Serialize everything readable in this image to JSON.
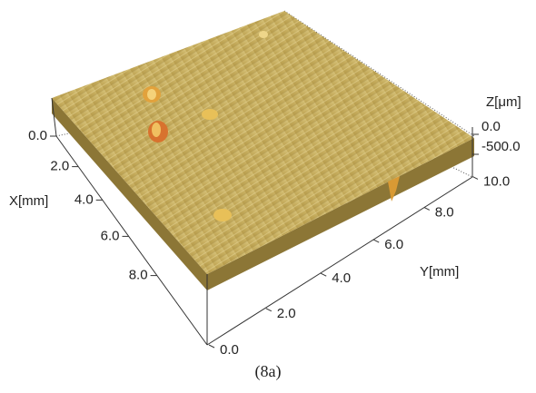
{
  "chart_data": {
    "type": "surface",
    "x_label": "X[mm]",
    "y_label": "Y[mm]",
    "z_label": "Z[μm]",
    "caption": "(8a)",
    "xticks": [
      {
        "value": 0,
        "label": "0.0"
      },
      {
        "value": 2,
        "label": "2.0"
      },
      {
        "value": 4,
        "label": "4.0"
      },
      {
        "value": 6,
        "label": "6.0"
      },
      {
        "value": 8,
        "label": "8.0"
      }
    ],
    "yticks": [
      {
        "value": 0,
        "label": "0.0"
      },
      {
        "value": 2,
        "label": "2.0"
      },
      {
        "value": 4,
        "label": "4.0"
      },
      {
        "value": 6,
        "label": "6.0"
      },
      {
        "value": 8,
        "label": "8.0"
      },
      {
        "value": 10,
        "label": "10.0"
      }
    ],
    "zticks": [
      {
        "value": 0,
        "label": "0.0"
      },
      {
        "value": -500,
        "label": "-500.0"
      }
    ]
  }
}
